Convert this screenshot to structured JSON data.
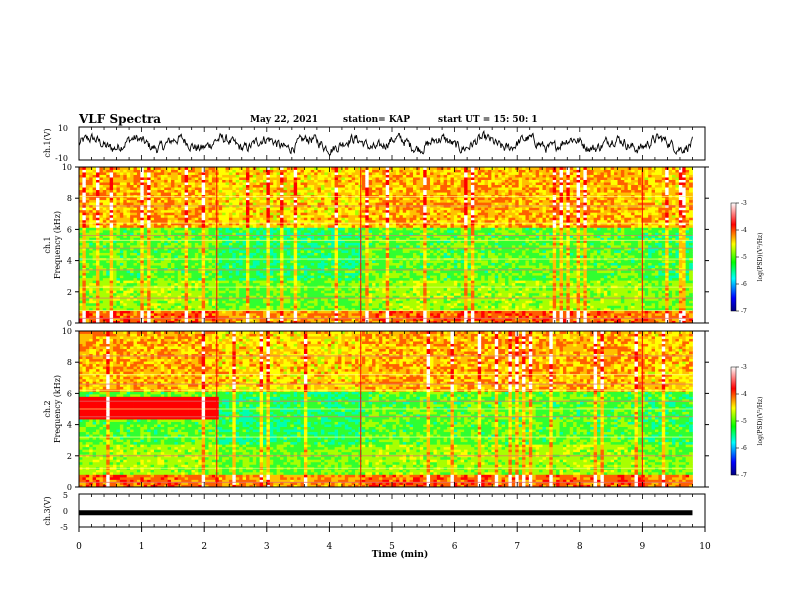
{
  "header": {
    "title": "VLF Spectra",
    "date": "May 22, 2021",
    "station": "station= KAP",
    "start": "start  UT =   15: 50: 1"
  },
  "colors": {
    "waveform": "#000000",
    "colormap": [
      "#000080",
      "#0000ff",
      "#00ffff",
      "#00ff00",
      "#ffff00",
      "#ff0000",
      "#ffffff"
    ]
  },
  "chart_data": [
    {
      "type": "line",
      "id": "ch1-voltage",
      "ylabel": "ch.1(V)",
      "ylim": [
        -10,
        10
      ],
      "yticks": [
        10,
        -10
      ],
      "x_units": "min",
      "xlim": [
        0,
        10
      ],
      "description_of_series": "broadband noise waveform",
      "series": [
        {
          "x_range": [
            0,
            9.8
          ],
          "y_typical_range": [
            -6,
            6
          ]
        }
      ]
    },
    {
      "type": "heatmap",
      "id": "ch1-spectrogram",
      "ylabel_lines": [
        "ch.1",
        "Frequency (kHz)"
      ],
      "ylim": [
        0,
        10
      ],
      "yticks": [
        0,
        2,
        4,
        6,
        8,
        10
      ],
      "xlim": [
        0,
        10
      ],
      "data_extent_x": [
        0,
        9.8
      ],
      "colorbar": {
        "label": "log(PSD)(V²/Hz)",
        "ticks": [
          -3,
          -4,
          -5,
          -6,
          -7
        ],
        "range": [
          -7,
          -3
        ]
      },
      "features": {
        "segment_boundaries_min": [
          2.2,
          4.5,
          9.0
        ],
        "horizontal_lines_khz": [
          0.3,
          0.8,
          1.6,
          2.3,
          3.4,
          4.1,
          4.8,
          5.3,
          5.6,
          6.4,
          7.5,
          8.1
        ]
      }
    },
    {
      "type": "heatmap",
      "id": "ch2-spectrogram",
      "ylabel_lines": [
        "ch.2",
        "Frequency (kHz)"
      ],
      "ylim": [
        0,
        10
      ],
      "yticks": [
        0,
        2,
        4,
        6,
        8,
        10
      ],
      "xlim": [
        0,
        10
      ],
      "data_extent_x": [
        0,
        9.8
      ],
      "colorbar": {
        "label": "log(PSD)(V²/Hz)",
        "ticks": [
          -3,
          -4,
          -5,
          -6,
          -7
        ],
        "range": [
          -7,
          -3
        ]
      },
      "features": {
        "segment_boundaries_min": [
          2.2,
          4.5,
          9.0
        ],
        "horizontal_lines_khz": [
          0.3,
          1.2,
          2.0,
          3.2,
          4.5,
          5.0,
          5.5,
          6.2,
          6.6,
          7.2,
          8.4
        ]
      }
    },
    {
      "type": "line",
      "id": "ch3-voltage",
      "ylabel": "ch.3(V)",
      "ylim": [
        -5,
        5
      ],
      "yticks": [
        5,
        0,
        -5
      ],
      "xlim": [
        0,
        10
      ],
      "series": [
        {
          "x_range": [
            0,
            9.8
          ],
          "y_typical_range": [
            -0.5,
            0.5
          ]
        }
      ]
    }
  ],
  "xaxis": {
    "label": "Time (min)",
    "ticks": [
      0,
      1,
      2,
      3,
      4,
      5,
      6,
      7,
      8,
      9,
      10
    ],
    "range": [
      0,
      10
    ]
  }
}
